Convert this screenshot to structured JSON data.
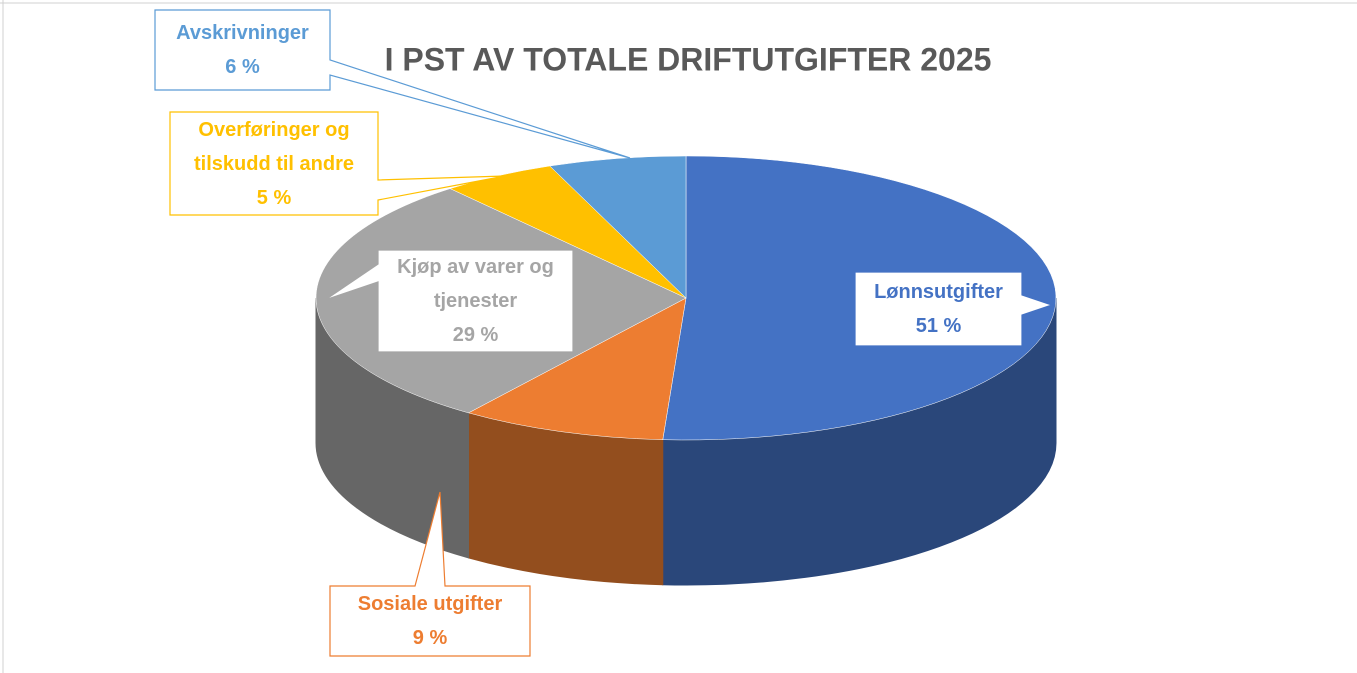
{
  "chart_data": {
    "type": "pie3d",
    "title": "I PST AV TOTALE DRIFTUTGIFTER 2025",
    "categories": [
      "Lønnsutgifter",
      "Sosiale utgifter",
      "Kjøp av varer og tjenester",
      "Overføringer og tilskudd til andre",
      "Avskrivninger"
    ],
    "values": [
      51,
      9,
      29,
      5,
      6
    ],
    "value_labels": [
      "51 %",
      "9 %",
      "29 %",
      "5 %",
      "6 %"
    ],
    "colors": [
      "#4472c4",
      "#ed7d31",
      "#a5a5a5",
      "#ffc000",
      "#5b9bd5"
    ]
  }
}
